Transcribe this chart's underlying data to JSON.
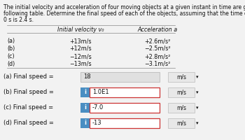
{
  "title_lines": [
    "The initial velocity and acceleration of four moving objects at a given instant in time are given in the",
    "following table. Determine the final speed of each of the objects, assuming that the time elapsed since t =",
    "0 s is 2.4 s."
  ],
  "table_header_v0": "Initial velocity v₀",
  "table_header_a": "Acceleration a",
  "table_rows": [
    {
      "label": "(a)",
      "v0": "+13m/s",
      "a": "+2.6m/s²"
    },
    {
      "label": "(b)",
      "v0": "+12m/s",
      "a": "−2.5m/s²"
    },
    {
      "label": "(c)",
      "v0": "−12m/s",
      "a": "+2.8m/s²"
    },
    {
      "label": "(d)",
      "v0": "−13m/s",
      "a": "−3.1m/s²"
    }
  ],
  "answers": [
    {
      "label": "(a) Final speed =",
      "value": "18",
      "unit": "m/s",
      "highlighted": false,
      "icon": false
    },
    {
      "label": "(b) Final speed =",
      "value": "1.0E1",
      "unit": "m/s",
      "highlighted": true,
      "icon": true
    },
    {
      "label": "(c) Final speed =",
      "value": "-7.0",
      "unit": "m/s",
      "highlighted": true,
      "icon": true
    },
    {
      "label": "(d) Final speed =",
      "value": "-13",
      "unit": "m/s",
      "highlighted": true,
      "icon": true
    }
  ],
  "bg_color": "#f2f2f2",
  "box_normal_facecolor": "#e0e0e0",
  "box_normal_edgecolor": "#bbbbbb",
  "box_highlight_facecolor": "#ffffff",
  "box_highlight_edgecolor": "#cc3333",
  "icon_facecolor": "#4a8ec2",
  "unit_facecolor": "#e8e8e8",
  "unit_edgecolor": "#bbbbbb",
  "text_color": "#111111",
  "title_fontsize": 5.5,
  "table_fontsize": 5.8,
  "answer_fontsize": 6.0
}
